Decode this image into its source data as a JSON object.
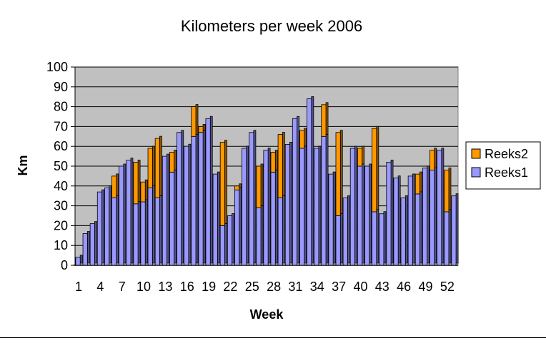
{
  "chart_data": {
    "type": "bar",
    "stacked": true,
    "title": "Kilometers per week 2006",
    "xlabel": "Week",
    "ylabel": "Km",
    "ylim": [
      0,
      100
    ],
    "yticks": [
      0,
      10,
      20,
      30,
      40,
      50,
      60,
      70,
      80,
      90,
      100
    ],
    "grid": true,
    "legend_position": "right",
    "plot_background": "#c0c0c0",
    "categories": [
      1,
      2,
      3,
      4,
      5,
      6,
      7,
      8,
      9,
      10,
      11,
      12,
      13,
      14,
      15,
      16,
      17,
      18,
      19,
      20,
      21,
      22,
      23,
      24,
      25,
      26,
      27,
      28,
      29,
      30,
      31,
      32,
      33,
      34,
      35,
      36,
      37,
      38,
      39,
      40,
      41,
      42,
      43,
      44,
      45,
      46,
      47,
      48,
      49,
      50,
      51,
      52,
      53
    ],
    "xtick_labels": [
      "1",
      "4",
      "7",
      "10",
      "13",
      "16",
      "19",
      "22",
      "25",
      "28",
      "31",
      "34",
      "37",
      "40",
      "43",
      "46",
      "49",
      "52"
    ],
    "series": [
      {
        "name": "Reeks1",
        "color": "#9999ff",
        "values": [
          4,
          16,
          21,
          37,
          39,
          34,
          50,
          53,
          31,
          32,
          39,
          34,
          55,
          47,
          67,
          60,
          65,
          67,
          74,
          46,
          20,
          25,
          38,
          59,
          67,
          29,
          58,
          47,
          34,
          61,
          74,
          59,
          84,
          59,
          65,
          46,
          25,
          34,
          59,
          50,
          50,
          27,
          26,
          52,
          44,
          34,
          45,
          36,
          49,
          48,
          58,
          27,
          35
        ]
      },
      {
        "name": "Reeks2",
        "color": "#ff9900",
        "values": [
          0,
          0,
          0,
          0,
          0,
          11,
          0,
          0,
          21,
          10,
          20,
          30,
          0,
          10,
          0,
          0,
          15,
          3,
          0,
          0,
          42,
          0,
          2,
          0,
          0,
          21,
          0,
          10,
          32,
          0,
          0,
          9,
          0,
          0,
          16,
          0,
          42,
          0,
          0,
          9,
          0,
          42,
          0,
          0,
          0,
          0,
          0,
          10,
          0,
          10,
          0,
          21,
          0
        ]
      }
    ]
  }
}
